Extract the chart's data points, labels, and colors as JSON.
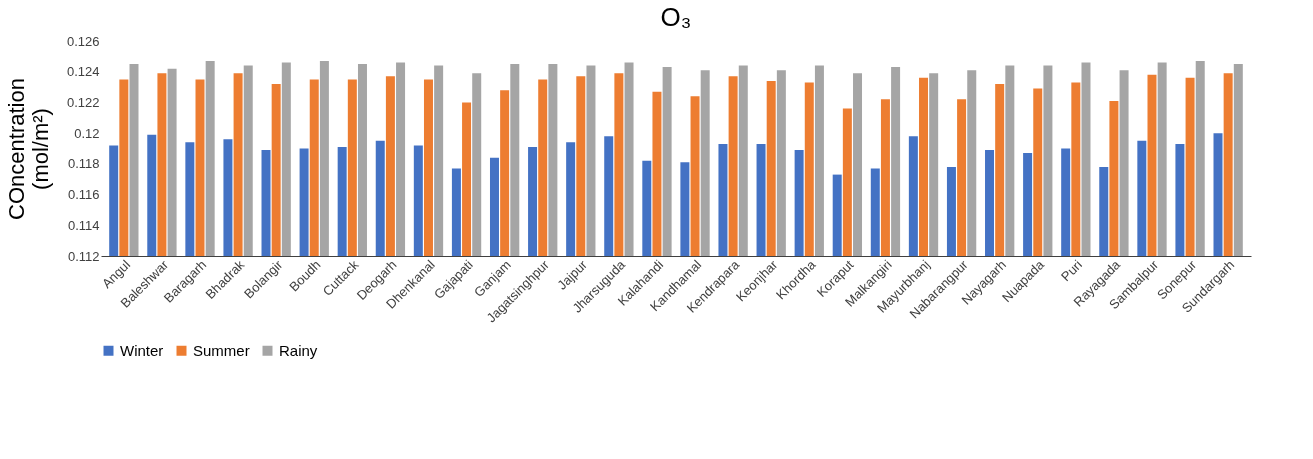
{
  "chart_data": {
    "type": "bar",
    "title": "O₃",
    "ylabel": "COncentration (mol/m²)",
    "categories": [
      "Angul",
      "Baleshwar",
      "Baragarh",
      "Bhadrak",
      "Bolangir",
      "Boudh",
      "Cuttack",
      "Deogarh",
      "Dhenkanal",
      "Gajapati",
      "Ganjam",
      "Jagatsinghpur",
      "Jajpur",
      "Jharsuguda",
      "Kalahandi",
      "Kandhamal",
      "Kendrapara",
      "Keonjhar",
      "Khordha",
      "Koraput",
      "Malkangiri",
      "Mayurbhanj",
      "Nabarangpur",
      "Nayagarh",
      "Nuapada",
      "Puri",
      "Rayagada",
      "Sambalpur",
      "Sonepur",
      "Sundargarh"
    ],
    "series": [
      {
        "name": "Winter",
        "color": "#4472c4",
        "values": [
          0.1192,
          0.1199,
          0.1194,
          0.1196,
          0.1189,
          0.119,
          0.1191,
          0.1195,
          0.1192,
          0.1177,
          0.1184,
          0.1191,
          0.1194,
          0.1198,
          0.1182,
          0.1181,
          0.1193,
          0.1193,
          0.1189,
          0.1173,
          0.1177,
          0.1198,
          0.1178,
          0.1189,
          0.1187,
          0.119,
          0.1178,
          0.1195,
          0.1193,
          0.12
        ]
      },
      {
        "name": "Summer",
        "color": "#ed7d31",
        "values": [
          0.1235,
          0.1239,
          0.1235,
          0.1239,
          0.1232,
          0.1235,
          0.1235,
          0.1237,
          0.1235,
          0.122,
          0.1228,
          0.1235,
          0.1237,
          0.1239,
          0.1227,
          0.1224,
          0.1237,
          0.1234,
          0.1233,
          0.1216,
          0.1222,
          0.1236,
          0.1222,
          0.1232,
          0.1229,
          0.1233,
          0.1221,
          0.1238,
          0.1236,
          0.1239
        ]
      },
      {
        "name": "Rainy",
        "color": "#a5a5a5",
        "values": [
          0.1245,
          0.1242,
          0.1247,
          0.1244,
          0.1246,
          0.1247,
          0.1245,
          0.1246,
          0.1244,
          0.1239,
          0.1245,
          0.1245,
          0.1244,
          0.1246,
          0.1243,
          0.1241,
          0.1244,
          0.1241,
          0.1244,
          0.1239,
          0.1243,
          0.1239,
          0.1241,
          0.1244,
          0.1244,
          0.1246,
          0.1241,
          0.1246,
          0.1247,
          0.1245
        ]
      }
    ],
    "ylim": [
      0.112,
      0.126
    ],
    "yticks": [
      0.112,
      0.114,
      0.116,
      0.118,
      0.12,
      0.122,
      0.124,
      0.126
    ],
    "grid": false,
    "legend": "bottom"
  }
}
